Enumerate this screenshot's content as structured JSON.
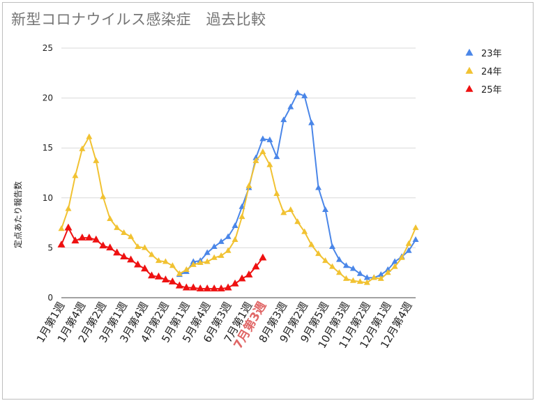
{
  "chart_data": {
    "type": "line",
    "title": "新型コロナウイルス感染症　過去比較",
    "xlabel": "",
    "ylabel": "定点あたり報告数",
    "ylim": [
      0,
      25
    ],
    "yticks": [
      "0",
      "5",
      "10",
      "15",
      "20",
      "25"
    ],
    "grid": true,
    "legend_position": "right",
    "marker": "triangle",
    "x_tick_labels": [
      "1月第1週",
      "1月第4週",
      "2月第2週",
      "3月第1週",
      "3月第4週",
      "4月第2週",
      "5月第1週",
      "5月第4週",
      "6月第3週",
      "7月第1週",
      "7月第3週",
      "8月第3週",
      "9月第2週",
      "9月第5週",
      "10月第3週",
      "11月第2週",
      "12月第1週",
      "12月第4週"
    ],
    "x_tick_positions": [
      1,
      4,
      7,
      10,
      13,
      16,
      19,
      22,
      25,
      28,
      30,
      33,
      36,
      39,
      42,
      45,
      48,
      51
    ],
    "highlight_tick": "7月第3週",
    "highlight_color": "#e06666",
    "series": [
      {
        "name": "23年",
        "color": "#4a86e8",
        "x": [
          18,
          19,
          20,
          21,
          22,
          23,
          24,
          25,
          26,
          27,
          28,
          29,
          30,
          31,
          32,
          33,
          34,
          35,
          36,
          37,
          38,
          39,
          40,
          41,
          42,
          43,
          44,
          45,
          46,
          47,
          48,
          49,
          50,
          51,
          52
        ],
        "values": [
          2.3,
          2.6,
          3.6,
          3.7,
          4.5,
          5.1,
          5.6,
          6.1,
          7.2,
          9.1,
          11.0,
          14.0,
          15.9,
          15.8,
          14.1,
          17.8,
          19.1,
          20.5,
          20.2,
          17.5,
          11.0,
          8.8,
          5.1,
          3.8,
          3.2,
          2.9,
          2.4,
          2.0,
          2.0,
          2.3,
          2.8,
          3.6,
          4.1,
          4.7,
          5.8
        ]
      },
      {
        "name": "24年",
        "color": "#f1c232",
        "x": [
          1,
          2,
          3,
          4,
          5,
          6,
          7,
          8,
          9,
          10,
          11,
          12,
          13,
          14,
          15,
          16,
          17,
          18,
          19,
          20,
          21,
          22,
          23,
          24,
          25,
          26,
          27,
          28,
          29,
          30,
          31,
          32,
          33,
          34,
          35,
          36,
          37,
          38,
          39,
          40,
          41,
          42,
          43,
          44,
          45,
          46,
          47,
          48,
          49,
          50,
          51,
          52
        ],
        "values": [
          6.9,
          8.9,
          12.2,
          14.9,
          16.1,
          13.7,
          10.1,
          7.9,
          7.0,
          6.5,
          6.1,
          5.1,
          5.0,
          4.3,
          3.7,
          3.6,
          3.2,
          2.4,
          2.8,
          3.3,
          3.5,
          3.6,
          4.0,
          4.2,
          4.7,
          5.8,
          8.1,
          11.2,
          13.7,
          14.6,
          13.3,
          10.4,
          8.5,
          8.8,
          7.6,
          6.6,
          5.3,
          4.4,
          3.7,
          3.1,
          2.5,
          1.9,
          1.7,
          1.6,
          1.5,
          2.0,
          1.9,
          2.5,
          3.1,
          4.0,
          5.4,
          7.0
        ]
      },
      {
        "name": "25年",
        "color": "#ee1111",
        "x": [
          1,
          2,
          3,
          4,
          5,
          6,
          7,
          8,
          9,
          10,
          11,
          12,
          13,
          14,
          15,
          16,
          17,
          18,
          19,
          20,
          21,
          22,
          23,
          24,
          25,
          26,
          27,
          28,
          29,
          30
        ],
        "values": [
          5.3,
          7.0,
          5.7,
          6.0,
          6.0,
          5.8,
          5.2,
          5.0,
          4.5,
          4.1,
          3.8,
          3.3,
          2.9,
          2.2,
          2.1,
          1.8,
          1.6,
          1.2,
          1.0,
          1.0,
          0.9,
          0.9,
          0.9,
          0.9,
          1.0,
          1.4,
          1.9,
          2.3,
          3.1,
          4.0
        ]
      }
    ]
  }
}
